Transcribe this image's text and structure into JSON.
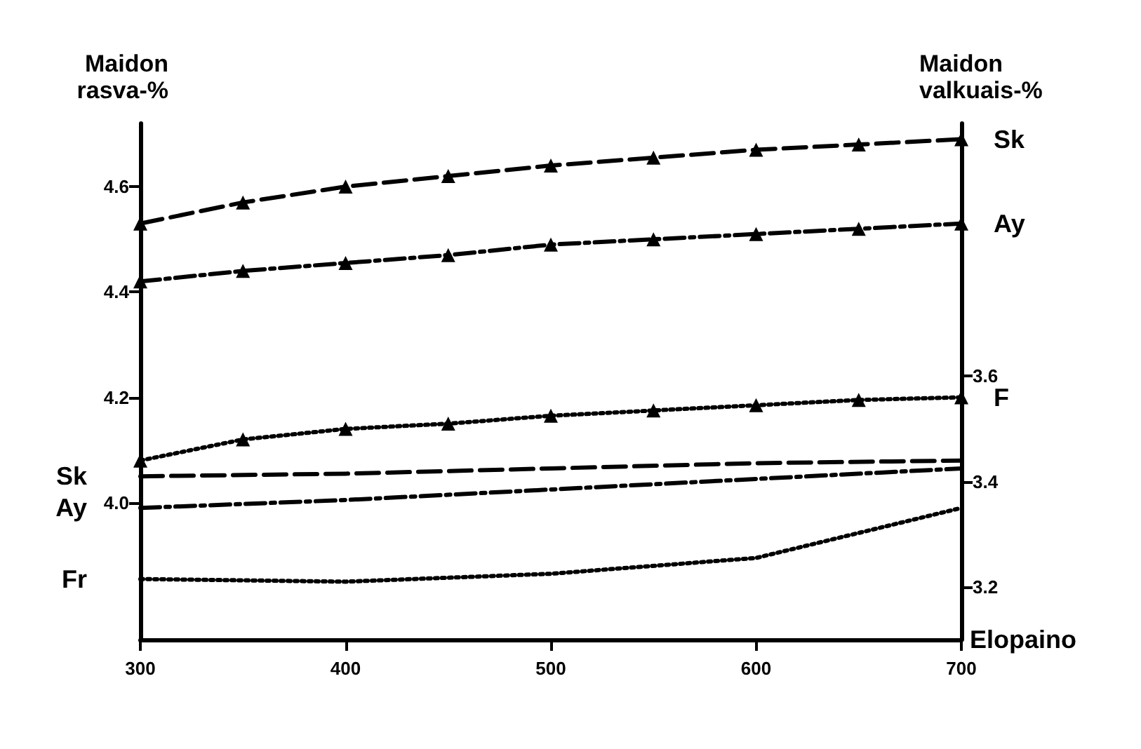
{
  "chart_data": {
    "type": "line",
    "xlabel": "Elopaino",
    "ylabel": "Maidon rasva-%",
    "y2label": "Maidon valkuais-%",
    "x": [
      300,
      350,
      400,
      450,
      500,
      550,
      600,
      650,
      700
    ],
    "xlim": [
      300,
      700
    ],
    "xticks": [
      300,
      400,
      500,
      600,
      700
    ],
    "ylim": [
      3.74,
      4.72
    ],
    "yticks": [
      {
        "value": 4.0,
        "label": "4.0"
      },
      {
        "value": 4.2,
        "label": "4.2"
      },
      {
        "value": 4.4,
        "label": "4.4"
      },
      {
        "value": 4.6,
        "label": "4.6"
      }
    ],
    "y2lim": [
      3.1,
      4.08
    ],
    "y2ticks": [
      {
        "value": 3.2,
        "label": "3.2"
      },
      {
        "value": 3.4,
        "label": "3.4"
      },
      {
        "value": 3.6,
        "label": "3.6"
      }
    ],
    "grid": false,
    "legend": false,
    "series": [
      {
        "name": "Sk",
        "color": "#000000",
        "marker": "triangle",
        "line_style": "dashed",
        "values": [
          4.53,
          4.57,
          4.6,
          4.62,
          4.64,
          4.655,
          4.67,
          4.68,
          4.69
        ]
      },
      {
        "name": "Ay",
        "color": "#000000",
        "marker": "triangle",
        "line_style": "dashdot",
        "values": [
          4.42,
          4.44,
          4.455,
          4.47,
          4.49,
          4.5,
          4.51,
          4.52,
          4.53
        ]
      },
      {
        "name": "F",
        "color": "#000000",
        "marker": "triangle",
        "line_style": "dotted",
        "values": [
          4.08,
          4.12,
          4.14,
          4.15,
          4.165,
          4.175,
          4.185,
          4.195,
          4.2
        ]
      },
      {
        "name": "Sk",
        "color": "#000000",
        "marker": "none",
        "line_style": "dashed",
        "axis": "y2",
        "x": [
          300,
          400,
          500,
          600,
          700
        ],
        "values": [
          3.41,
          3.415,
          3.425,
          3.435,
          3.44
        ]
      },
      {
        "name": "Ay",
        "color": "#000000",
        "marker": "none",
        "line_style": "dashdot",
        "axis": "y2",
        "x": [
          300,
          400,
          500,
          600,
          700
        ],
        "values": [
          3.35,
          3.365,
          3.385,
          3.405,
          3.425
        ]
      },
      {
        "name": "Fr",
        "color": "#000000",
        "marker": "none",
        "line_style": "dotted",
        "axis": "y2",
        "x": [
          300,
          400,
          500,
          600,
          700
        ],
        "values": [
          3.215,
          3.21,
          3.225,
          3.255,
          3.35
        ]
      }
    ]
  }
}
